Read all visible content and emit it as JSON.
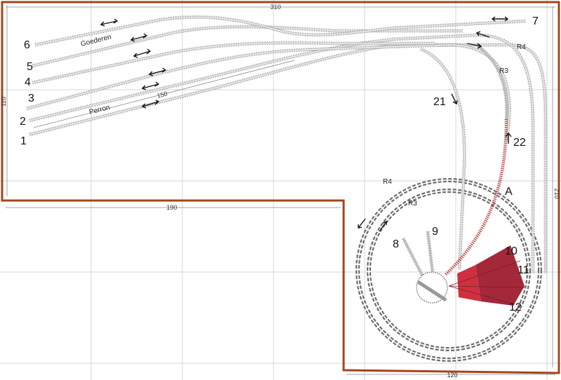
{
  "dimensions": {
    "top_width": "310",
    "left_height": "110",
    "lower_width": "190",
    "right_height": "210",
    "bottom_width": "120",
    "platform_length": "150"
  },
  "labels": {
    "goods": "Goederen",
    "platform": "Perron",
    "radius_r4_top": "R4",
    "radius_r3_top": "R3",
    "radius_r4_loop": "R4",
    "radius_r3_loop": "R3",
    "junction": "A"
  },
  "track_numbers": {
    "t1": "1",
    "t2": "2",
    "t3": "3",
    "t4": "4",
    "t5": "5",
    "t6": "6",
    "t7": "7",
    "t8": "8",
    "t9": "9",
    "t10": "10",
    "t11": "11",
    "t12": "12",
    "t21": "21",
    "t22": "22"
  },
  "colors": {
    "wall": "#a4441c",
    "engine_shed": "#a3283a",
    "engine_shed_front": "#cf3040",
    "track": "#bdbdbd"
  }
}
